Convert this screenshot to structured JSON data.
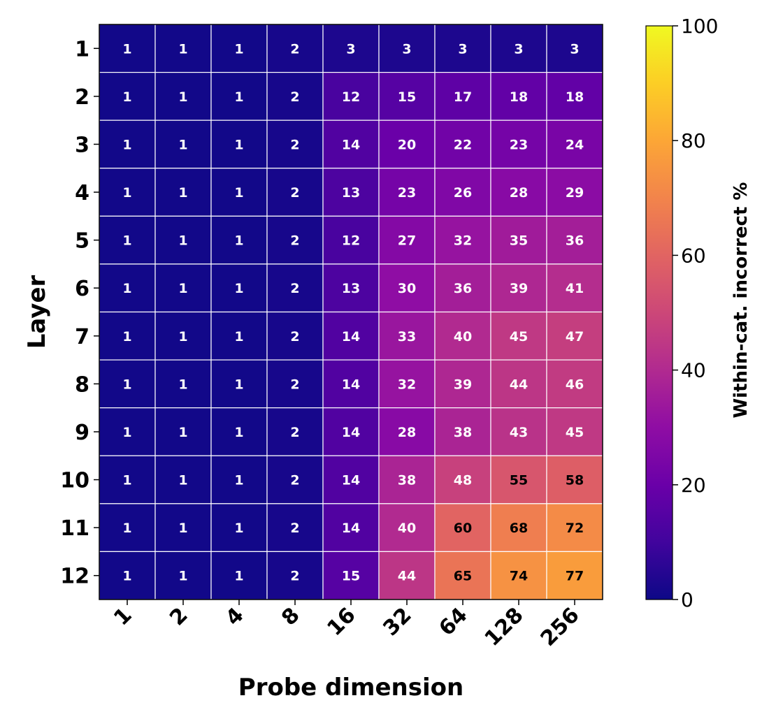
{
  "chart_data": {
    "type": "heatmap",
    "title": "",
    "xlabel": "Probe dimension",
    "ylabel": "Layer",
    "x_categories": [
      "1",
      "2",
      "4",
      "8",
      "16",
      "32",
      "64",
      "128",
      "256"
    ],
    "y_categories": [
      "1",
      "2",
      "3",
      "4",
      "5",
      "6",
      "7",
      "8",
      "9",
      "10",
      "11",
      "12"
    ],
    "values": [
      [
        1,
        1,
        1,
        2,
        3,
        3,
        3,
        3,
        3
      ],
      [
        1,
        1,
        1,
        2,
        12,
        15,
        17,
        18,
        18
      ],
      [
        1,
        1,
        1,
        2,
        14,
        20,
        22,
        23,
        24
      ],
      [
        1,
        1,
        1,
        2,
        13,
        23,
        26,
        28,
        29
      ],
      [
        1,
        1,
        1,
        2,
        12,
        27,
        32,
        35,
        36
      ],
      [
        1,
        1,
        1,
        2,
        13,
        30,
        36,
        39,
        41
      ],
      [
        1,
        1,
        1,
        2,
        14,
        33,
        40,
        45,
        47
      ],
      [
        1,
        1,
        1,
        2,
        14,
        32,
        39,
        44,
        46
      ],
      [
        1,
        1,
        1,
        2,
        14,
        28,
        38,
        43,
        45
      ],
      [
        1,
        1,
        1,
        2,
        14,
        38,
        48,
        55,
        58
      ],
      [
        1,
        1,
        1,
        2,
        14,
        40,
        60,
        68,
        72
      ],
      [
        1,
        1,
        1,
        2,
        15,
        44,
        65,
        74,
        77
      ]
    ],
    "colorbar": {
      "label": "Within-cat. incorrect %",
      "range": [
        0,
        100
      ],
      "ticks": [
        "0",
        "20",
        "40",
        "60",
        "80",
        "100"
      ],
      "colormap": "plasma"
    },
    "text_color_dark_threshold": 50,
    "grid_line_color": "#ffffff"
  }
}
